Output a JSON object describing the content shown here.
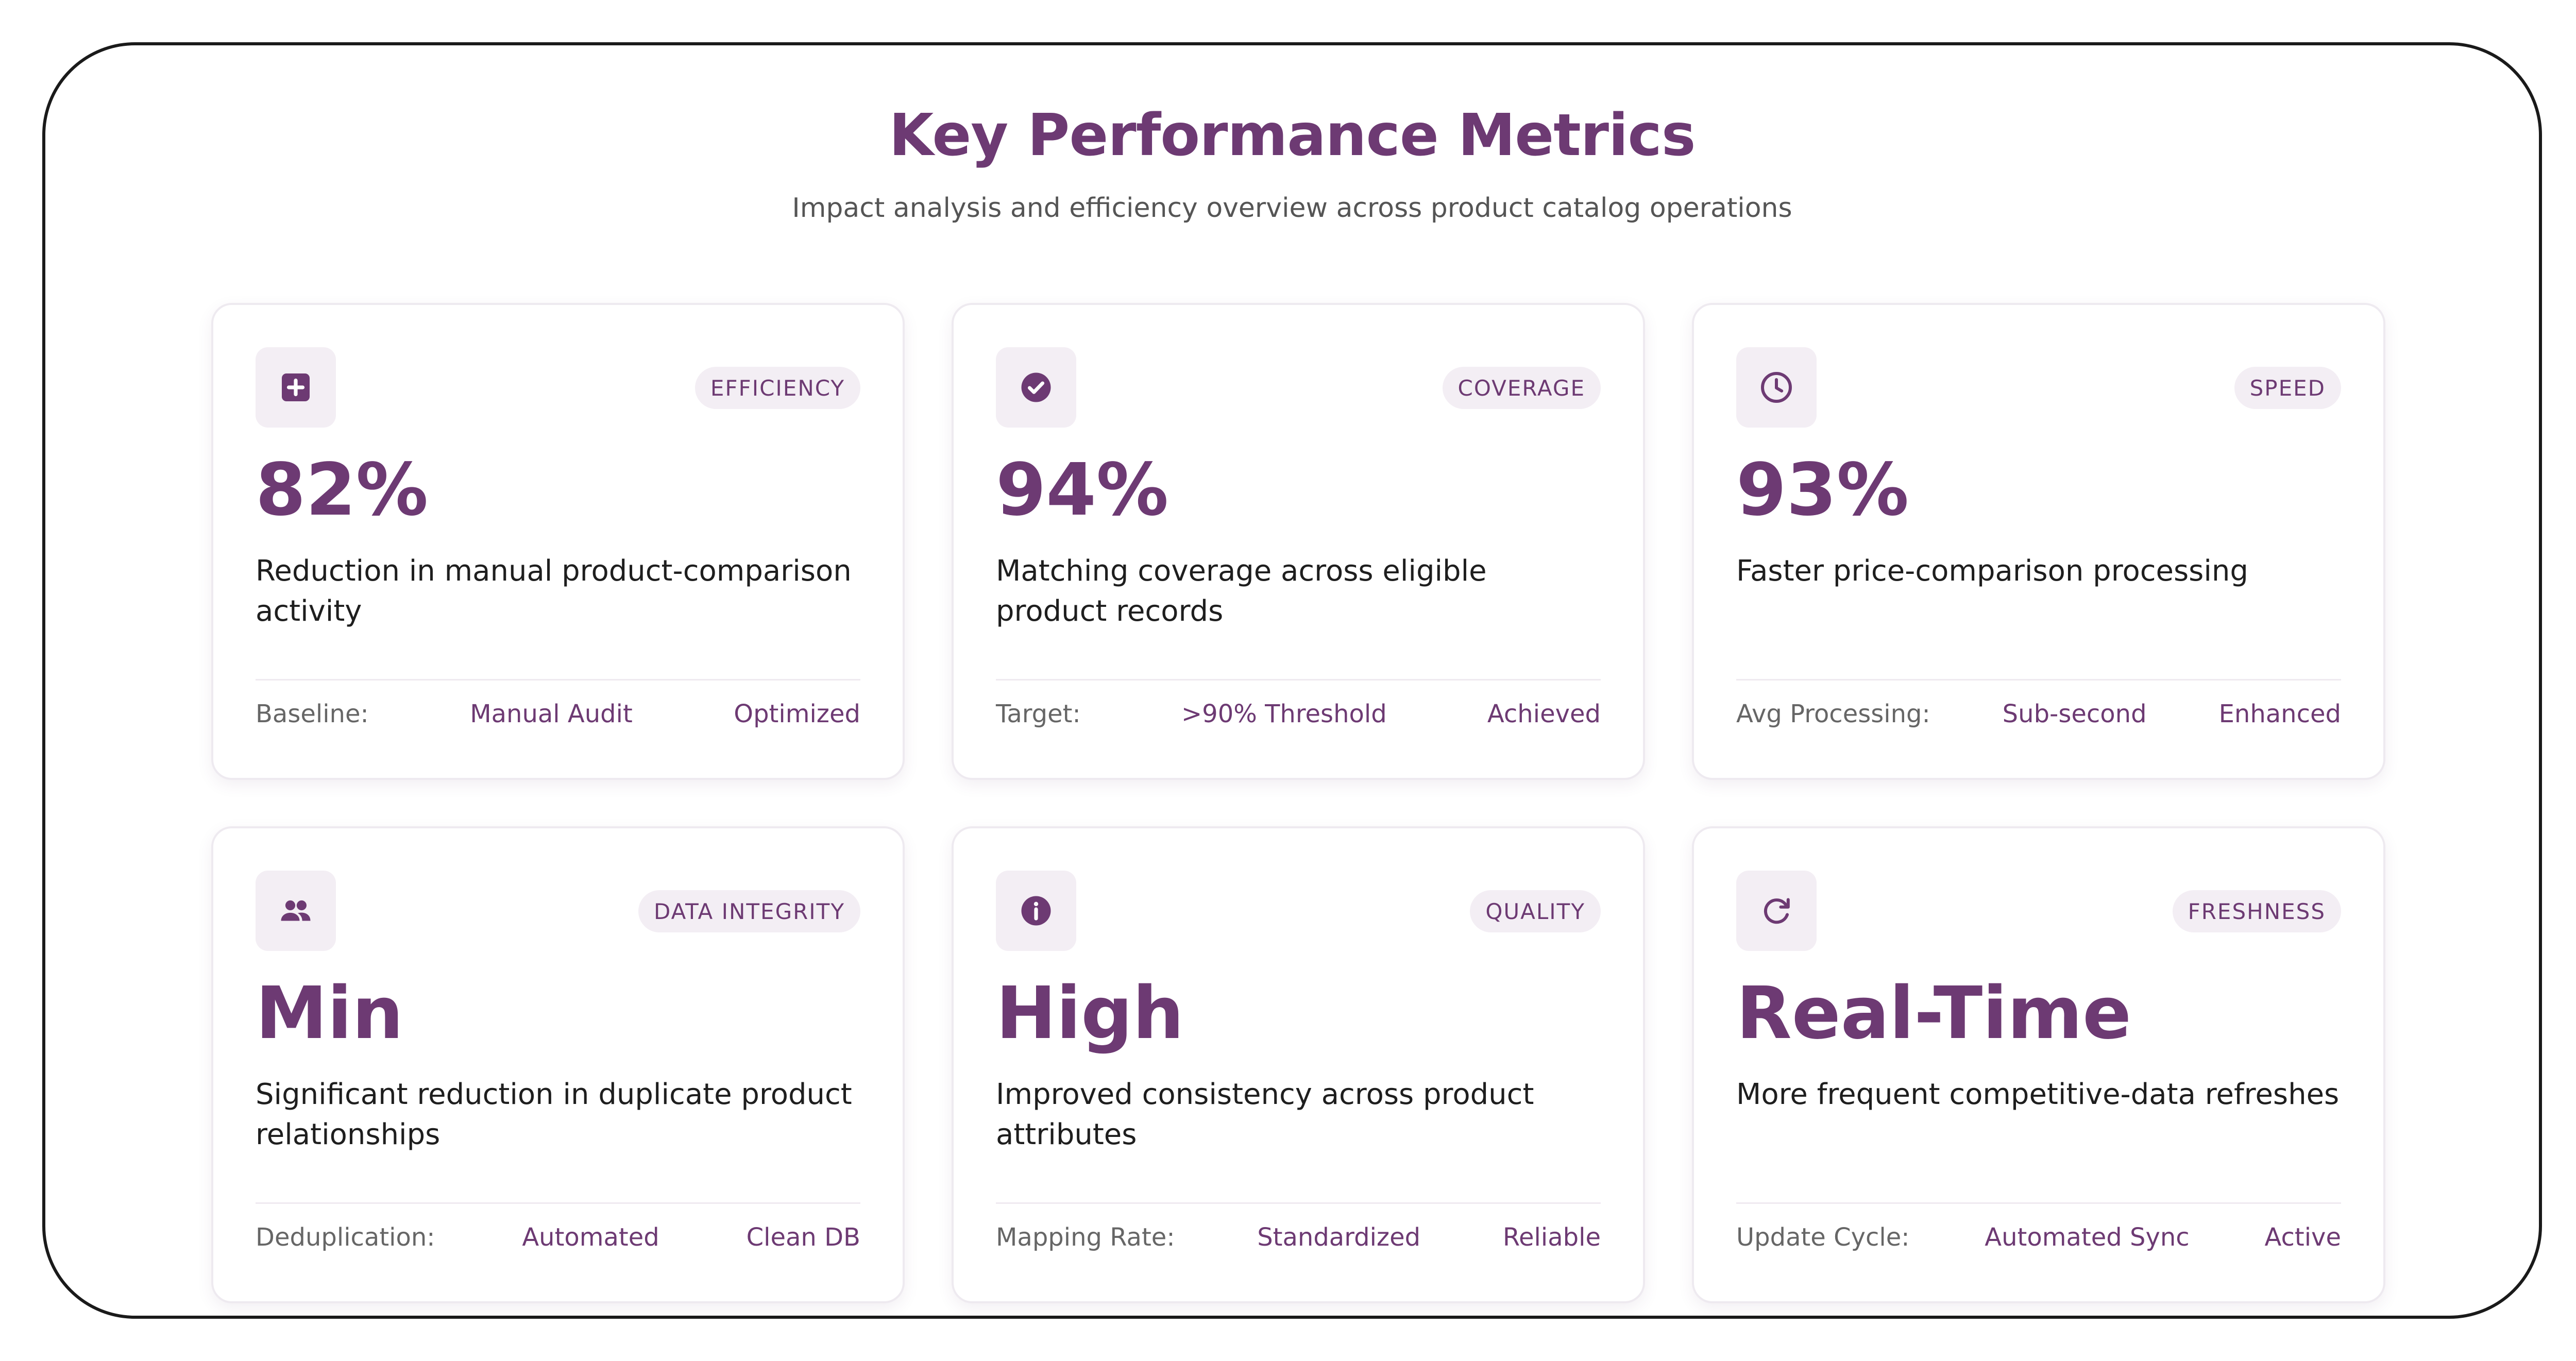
{
  "header": {
    "title": "Key Performance Metrics",
    "subtitle": "Impact analysis and efficiency overview across product catalog operations"
  },
  "colors": {
    "accent": "#6d3a73",
    "tag_bg": "#f3eef4"
  },
  "cards": [
    {
      "icon": "plus-square-icon",
      "tag": "EFFICIENCY",
      "value": "82%",
      "description": "Reduction in manual product-comparison activity",
      "footer_label": "Baseline:",
      "footer_mid": "Manual Audit",
      "footer_status": "Optimized"
    },
    {
      "icon": "check-circle-icon",
      "tag": "COVERAGE",
      "value": "94%",
      "description": "Matching coverage across eligible product records",
      "footer_label": "Target:",
      "footer_mid": ">90% Threshold",
      "footer_status": "Achieved"
    },
    {
      "icon": "clock-icon",
      "tag": "SPEED",
      "value": "93%",
      "description": "Faster price-comparison processing",
      "footer_label": "Avg Processing:",
      "footer_mid": "Sub-second",
      "footer_status": "Enhanced"
    },
    {
      "icon": "users-icon",
      "tag": "DATA INTEGRITY",
      "value": "Min",
      "description": "Significant reduction in duplicate product relationships",
      "footer_label": "Deduplication:",
      "footer_mid": "Automated",
      "footer_status": "Clean DB"
    },
    {
      "icon": "info-icon",
      "tag": "QUALITY",
      "value": "High",
      "description": "Improved consistency across product attributes",
      "footer_label": "Mapping Rate:",
      "footer_mid": "Standardized",
      "footer_status": "Reliable"
    },
    {
      "icon": "refresh-icon",
      "tag": "FRESHNESS",
      "value": "Real-Time",
      "description": "More frequent competitive-data refreshes",
      "footer_label": "Update Cycle:",
      "footer_mid": "Automated Sync",
      "footer_status": "Active"
    }
  ]
}
